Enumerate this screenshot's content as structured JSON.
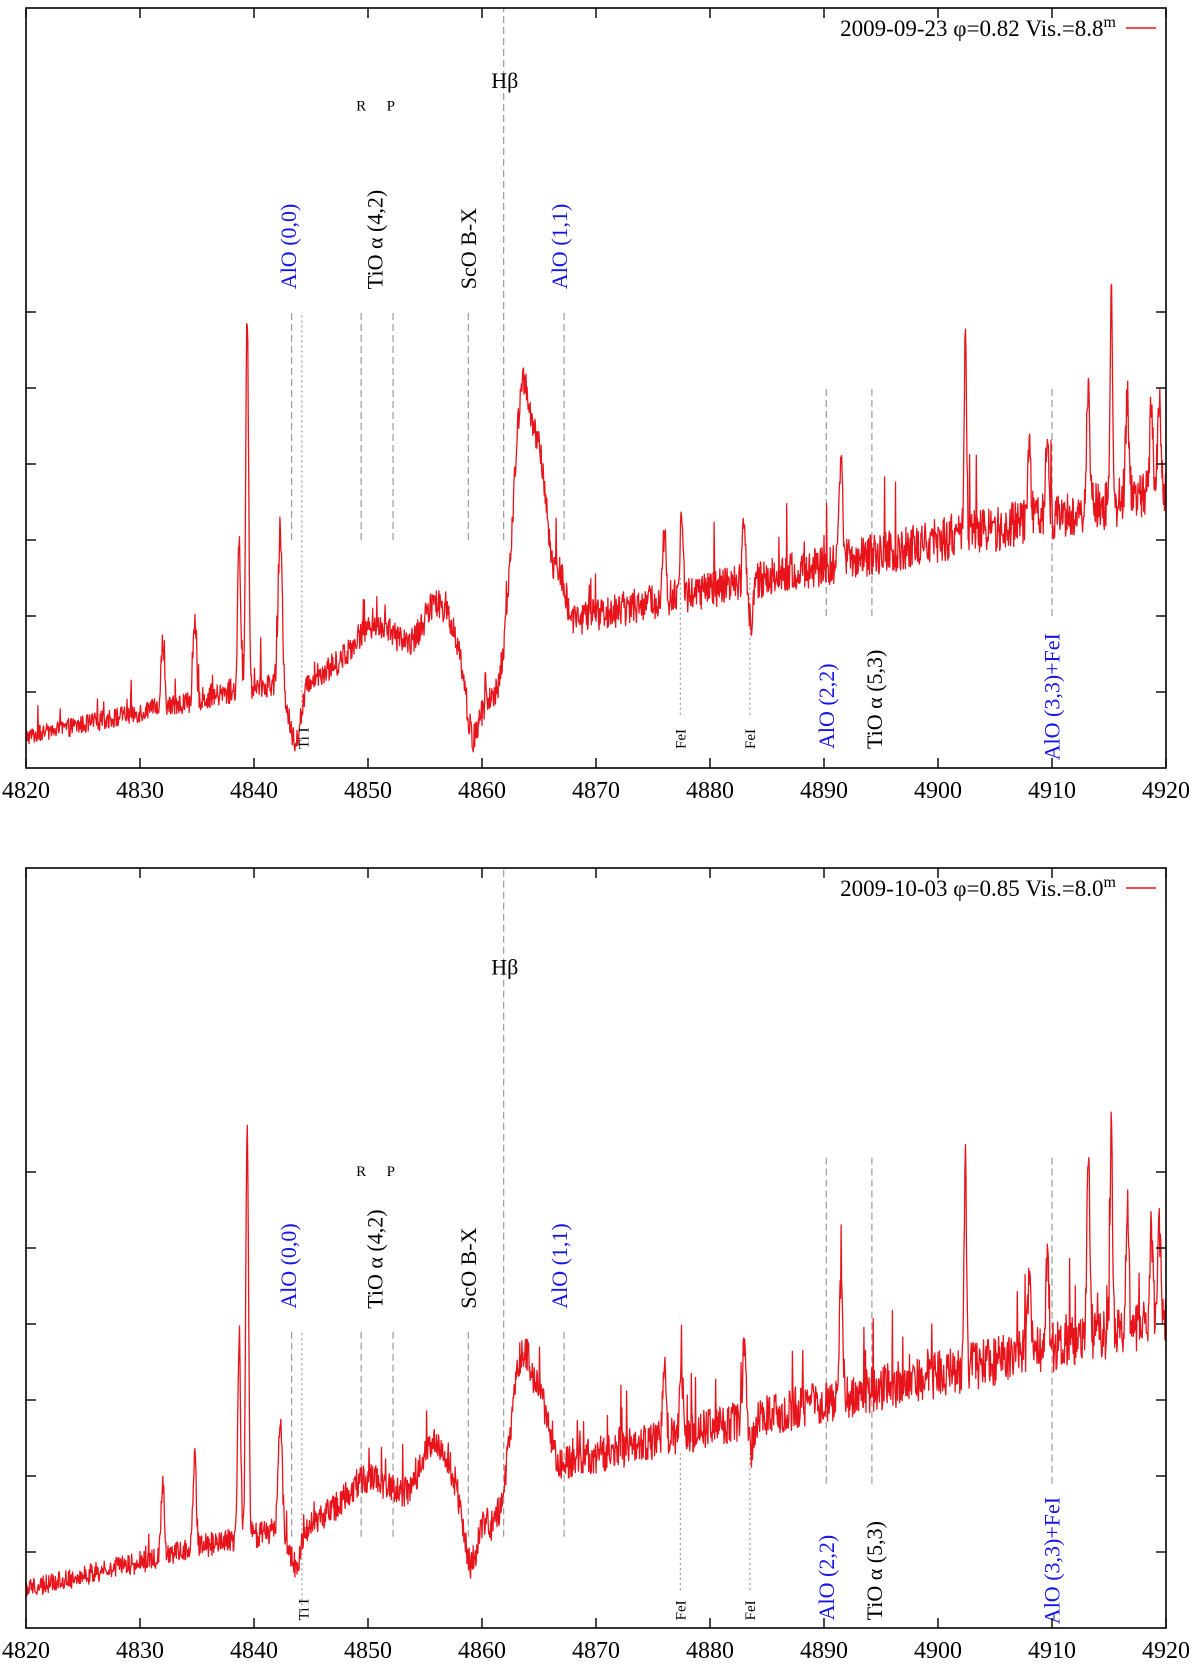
{
  "figure": {
    "title": "",
    "description_domain": "spectrum"
  },
  "colors": {
    "spectrum": "#e8141c",
    "marker_line": "#9a9a9a",
    "blue_label": "#1515e6",
    "black_label": "#000000"
  },
  "chart_data": [
    {
      "type": "line",
      "panel": "top",
      "legend": {
        "date": "2009-09-23",
        "phase": "φ=0.82",
        "vis": "Vis.=8.8",
        "vis_sup": "m"
      },
      "xlim": [
        4820,
        4920
      ],
      "x_ticks": [
        4820,
        4830,
        4840,
        4850,
        4860,
        4870,
        4880,
        4890,
        4900,
        4910,
        4920
      ],
      "ylim": [
        0,
        1
      ],
      "y_ticks": [
        0.1,
        0.2,
        0.3,
        0.4,
        0.5,
        0.6
      ],
      "xlabel": "",
      "ylabel": "",
      "continuum": {
        "start": 0.04,
        "end": 0.36,
        "noise": 0.028
      },
      "features": [
        {
          "x": 4839.4,
          "amp": 0.49,
          "w": 0.18
        },
        {
          "x": 4838.7,
          "amp": 0.2,
          "w": 0.18
        },
        {
          "x": 4842.3,
          "amp": 0.2,
          "w": 0.25
        },
        {
          "x": 4843.6,
          "amp": -0.08,
          "w": 0.8
        },
        {
          "x": 4834.8,
          "amp": 0.1,
          "w": 0.2
        },
        {
          "x": 4832.0,
          "amp": 0.09,
          "w": 0.2
        },
        {
          "x": 4850.5,
          "amp": 0.05,
          "w": 2.5
        },
        {
          "x": 4856.0,
          "amp": 0.06,
          "w": 1.6
        },
        {
          "x": 4859.2,
          "amp": -0.12,
          "w": 0.9
        },
        {
          "x": 4861.0,
          "amp": -0.08,
          "w": 1.2
        },
        {
          "x": 4863.6,
          "amp": 0.32,
          "w": 1.1
        },
        {
          "x": 4865.2,
          "amp": 0.18,
          "w": 0.9
        },
        {
          "x": 4866.8,
          "amp": 0.06,
          "w": 0.7
        },
        {
          "x": 4876.0,
          "amp": 0.09,
          "w": 0.2
        },
        {
          "x": 4877.5,
          "amp": 0.1,
          "w": 0.2
        },
        {
          "x": 4883.0,
          "amp": 0.09,
          "w": 0.2
        },
        {
          "x": 4883.6,
          "amp": -0.05,
          "w": 0.3
        },
        {
          "x": 4891.5,
          "amp": 0.15,
          "w": 0.2
        },
        {
          "x": 4902.4,
          "amp": 0.25,
          "w": 0.15
        },
        {
          "x": 4908.0,
          "amp": 0.1,
          "w": 0.2
        },
        {
          "x": 4909.6,
          "amp": 0.12,
          "w": 0.2
        },
        {
          "x": 4913.2,
          "amp": 0.15,
          "w": 0.2
        },
        {
          "x": 4915.2,
          "amp": 0.28,
          "w": 0.15
        },
        {
          "x": 4916.6,
          "amp": 0.13,
          "w": 0.2
        },
        {
          "x": 4918.7,
          "amp": 0.11,
          "w": 0.2
        },
        {
          "x": 4919.4,
          "amp": 0.12,
          "w": 0.2
        }
      ],
      "markers": [
        {
          "x": 4843.3,
          "y0": 0.3,
          "y1": 0.6,
          "style": "dash"
        },
        {
          "x": 4844.2,
          "y0": 0.06,
          "y1": 0.6,
          "style": "dot"
        },
        {
          "x": 4849.4,
          "y0": 0.3,
          "y1": 0.6,
          "style": "dash"
        },
        {
          "x": 4852.2,
          "y0": 0.3,
          "y1": 0.6,
          "style": "dash"
        },
        {
          "x": 4858.8,
          "y0": 0.3,
          "y1": 0.6,
          "style": "dash"
        },
        {
          "x": 4861.9,
          "y0": 0.3,
          "y1": 1.0,
          "style": "dash"
        },
        {
          "x": 4867.2,
          "y0": 0.3,
          "y1": 0.6,
          "style": "dash"
        },
        {
          "x": 4877.4,
          "y0": 0.07,
          "y1": 0.25,
          "style": "dot"
        },
        {
          "x": 4883.5,
          "y0": 0.07,
          "y1": 0.25,
          "style": "dot"
        },
        {
          "x": 4890.2,
          "y0": 0.2,
          "y1": 0.5,
          "style": "dash"
        },
        {
          "x": 4894.2,
          "y0": 0.2,
          "y1": 0.5,
          "style": "dash"
        },
        {
          "x": 4910.0,
          "y0": 0.2,
          "y1": 0.5,
          "style": "dash"
        }
      ],
      "labels": [
        {
          "text": "AlO (0,0)",
          "x": 4843.0,
          "y": 0.63,
          "color": "blue",
          "rot": true,
          "size": "big"
        },
        {
          "text": "TiO α (4,2)",
          "x": 4850.6,
          "y": 0.63,
          "color": "black",
          "rot": true,
          "size": "big"
        },
        {
          "text": "R",
          "x": 4849.4,
          "y": 0.865,
          "color": "black",
          "rot": false,
          "size": "small"
        },
        {
          "text": "P",
          "x": 4852.0,
          "y": 0.865,
          "color": "black",
          "rot": false,
          "size": "small"
        },
        {
          "text": "ScO B-X",
          "x": 4858.8,
          "y": 0.63,
          "color": "black",
          "rot": true,
          "size": "big"
        },
        {
          "text": "Hβ",
          "x": 4862.0,
          "y": 0.895,
          "color": "black",
          "rot": false,
          "size": "big"
        },
        {
          "text": "AlO (1,1)",
          "x": 4866.8,
          "y": 0.63,
          "color": "blue",
          "rot": true,
          "size": "big"
        },
        {
          "text": "Ti I",
          "x": 4844.3,
          "y": 0.025,
          "color": "black",
          "rot": true,
          "size": "small"
        },
        {
          "text": "FeI",
          "x": 4877.4,
          "y": 0.025,
          "color": "black",
          "rot": true,
          "size": "small"
        },
        {
          "text": "FeI",
          "x": 4883.5,
          "y": 0.025,
          "color": "black",
          "rot": true,
          "size": "small"
        },
        {
          "text": "AlO (2,2)",
          "x": 4890.2,
          "y": 0.025,
          "color": "blue",
          "rot": true,
          "size": "big"
        },
        {
          "text": "TiO α (5,3)",
          "x": 4894.4,
          "y": 0.025,
          "color": "black",
          "rot": true,
          "size": "big"
        },
        {
          "text": "AlO (3,3)+FeI",
          "x": 4910.0,
          "y": 0.01,
          "color": "blue",
          "rot": true,
          "size": "big"
        }
      ]
    },
    {
      "type": "line",
      "panel": "bottom",
      "legend": {
        "date": "2009-10-03",
        "phase": "φ=0.85",
        "vis": "Vis.=8.0",
        "vis_sup": "m"
      },
      "xlim": [
        4820,
        4920
      ],
      "x_ticks": [
        4820,
        4830,
        4840,
        4850,
        4860,
        4870,
        4880,
        4890,
        4900,
        4910,
        4920
      ],
      "ylim": [
        0,
        1
      ],
      "y_ticks": [
        0.1,
        0.2,
        0.3,
        0.4,
        0.5,
        0.6
      ],
      "xlabel": "",
      "ylabel": "",
      "continuum": {
        "start": 0.05,
        "end": 0.4,
        "noise": 0.03
      },
      "features": [
        {
          "x": 4839.4,
          "amp": 0.52,
          "w": 0.18
        },
        {
          "x": 4838.7,
          "amp": 0.27,
          "w": 0.18
        },
        {
          "x": 4842.3,
          "amp": 0.15,
          "w": 0.25
        },
        {
          "x": 4843.6,
          "amp": -0.05,
          "w": 0.8
        },
        {
          "x": 4834.8,
          "amp": 0.12,
          "w": 0.2
        },
        {
          "x": 4832.0,
          "amp": 0.1,
          "w": 0.2
        },
        {
          "x": 4849.8,
          "amp": 0.04,
          "w": 2.5
        },
        {
          "x": 4855.8,
          "amp": 0.07,
          "w": 1.6
        },
        {
          "x": 4859.0,
          "amp": -0.1,
          "w": 0.9
        },
        {
          "x": 4861.0,
          "amp": -0.06,
          "w": 1.2
        },
        {
          "x": 4863.6,
          "amp": 0.16,
          "w": 1.2
        },
        {
          "x": 4865.3,
          "amp": 0.07,
          "w": 0.9
        },
        {
          "x": 4876.0,
          "amp": 0.1,
          "w": 0.2
        },
        {
          "x": 4877.5,
          "amp": 0.09,
          "w": 0.2
        },
        {
          "x": 4883.0,
          "amp": 0.1,
          "w": 0.2
        },
        {
          "x": 4883.6,
          "amp": -0.04,
          "w": 0.3
        },
        {
          "x": 4891.5,
          "amp": 0.16,
          "w": 0.2
        },
        {
          "x": 4902.4,
          "amp": 0.27,
          "w": 0.15
        },
        {
          "x": 4908.0,
          "amp": 0.1,
          "w": 0.2
        },
        {
          "x": 4909.6,
          "amp": 0.12,
          "w": 0.2
        },
        {
          "x": 4913.2,
          "amp": 0.22,
          "w": 0.2
        },
        {
          "x": 4915.2,
          "amp": 0.3,
          "w": 0.15
        },
        {
          "x": 4916.6,
          "amp": 0.16,
          "w": 0.2
        },
        {
          "x": 4918.7,
          "amp": 0.12,
          "w": 0.2
        },
        {
          "x": 4919.4,
          "amp": 0.13,
          "w": 0.2
        }
      ],
      "markers": [
        {
          "x": 4843.3,
          "y0": 0.12,
          "y1": 0.39,
          "style": "dash"
        },
        {
          "x": 4844.2,
          "y0": 0.03,
          "y1": 0.39,
          "style": "dot"
        },
        {
          "x": 4849.4,
          "y0": 0.12,
          "y1": 0.39,
          "style": "dash"
        },
        {
          "x": 4852.2,
          "y0": 0.12,
          "y1": 0.39,
          "style": "dash"
        },
        {
          "x": 4858.8,
          "y0": 0.12,
          "y1": 0.39,
          "style": "dash"
        },
        {
          "x": 4861.9,
          "y0": 0.12,
          "y1": 1.0,
          "style": "dash"
        },
        {
          "x": 4867.2,
          "y0": 0.12,
          "y1": 0.39,
          "style": "dash"
        },
        {
          "x": 4877.4,
          "y0": 0.05,
          "y1": 0.23,
          "style": "dot"
        },
        {
          "x": 4883.5,
          "y0": 0.05,
          "y1": 0.23,
          "style": "dot"
        },
        {
          "x": 4890.2,
          "y0": 0.19,
          "y1": 0.62,
          "style": "dash"
        },
        {
          "x": 4894.2,
          "y0": 0.19,
          "y1": 0.62,
          "style": "dash"
        },
        {
          "x": 4910.0,
          "y0": 0.19,
          "y1": 0.62,
          "style": "dash"
        }
      ],
      "labels": [
        {
          "text": "AlO (0,0)",
          "x": 4843.0,
          "y": 0.42,
          "color": "blue",
          "rot": true,
          "size": "big"
        },
        {
          "text": "TiO α (4,2)",
          "x": 4850.6,
          "y": 0.42,
          "color": "black",
          "rot": true,
          "size": "big"
        },
        {
          "text": "R",
          "x": 4849.4,
          "y": 0.595,
          "color": "black",
          "rot": false,
          "size": "small"
        },
        {
          "text": "P",
          "x": 4852.0,
          "y": 0.595,
          "color": "black",
          "rot": false,
          "size": "small"
        },
        {
          "text": "ScO B-X",
          "x": 4858.8,
          "y": 0.42,
          "color": "black",
          "rot": true,
          "size": "big"
        },
        {
          "text": "Hβ",
          "x": 4862.0,
          "y": 0.86,
          "color": "black",
          "rot": false,
          "size": "big"
        },
        {
          "text": "AlO (1,1)",
          "x": 4866.8,
          "y": 0.42,
          "color": "blue",
          "rot": true,
          "size": "big"
        },
        {
          "text": "Ti I",
          "x": 4844.3,
          "y": 0.01,
          "color": "black",
          "rot": true,
          "size": "small"
        },
        {
          "text": "FeI",
          "x": 4877.4,
          "y": 0.01,
          "color": "black",
          "rot": true,
          "size": "small"
        },
        {
          "text": "FeI",
          "x": 4883.5,
          "y": 0.01,
          "color": "black",
          "rot": true,
          "size": "small"
        },
        {
          "text": "AlO (2,2)",
          "x": 4890.2,
          "y": 0.01,
          "color": "blue",
          "rot": true,
          "size": "big"
        },
        {
          "text": "TiO α (5,3)",
          "x": 4894.4,
          "y": 0.01,
          "color": "black",
          "rot": true,
          "size": "big"
        },
        {
          "text": "AlO (3,3)+FeI",
          "x": 4910.0,
          "y": 0.005,
          "color": "blue",
          "rot": true,
          "size": "big"
        }
      ]
    }
  ]
}
